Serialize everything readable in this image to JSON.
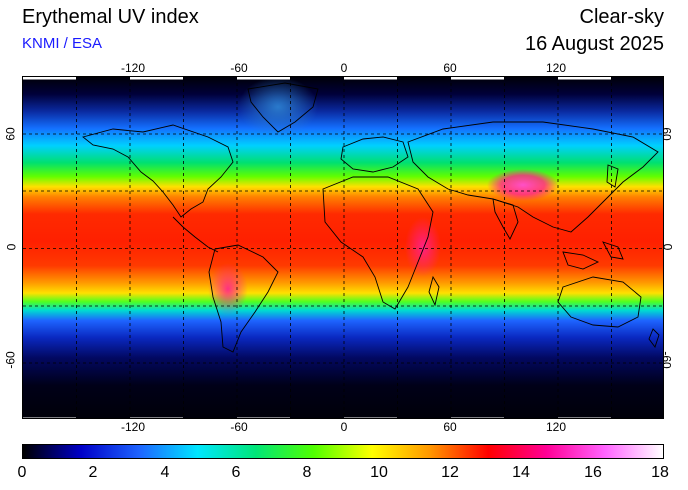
{
  "header": {
    "title": "Erythemal UV index",
    "credit": "KNMI / ESA",
    "condition": "Clear-sky",
    "date": "16 August 2025"
  },
  "map": {
    "longitude_labels": [
      "-120",
      "-60",
      "0",
      "60",
      "120"
    ],
    "latitude_labels": [
      "60",
      "0",
      "-60"
    ],
    "graticule": "dashed",
    "ocean_high_latitude_color": "#00001a",
    "coastline_color": "#000000"
  },
  "colorbar": {
    "labels": [
      "0",
      "2",
      "4",
      "6",
      "8",
      "10",
      "12",
      "14",
      "16",
      "18"
    ],
    "stops": [
      "#000000",
      "#0000c8",
      "#1e64ff",
      "#00e6ff",
      "#00e678",
      "#50ff00",
      "#ffff00",
      "#ff9600",
      "#ff0000",
      "#ff0096",
      "#ff64ff",
      "#ffffff"
    ]
  }
}
